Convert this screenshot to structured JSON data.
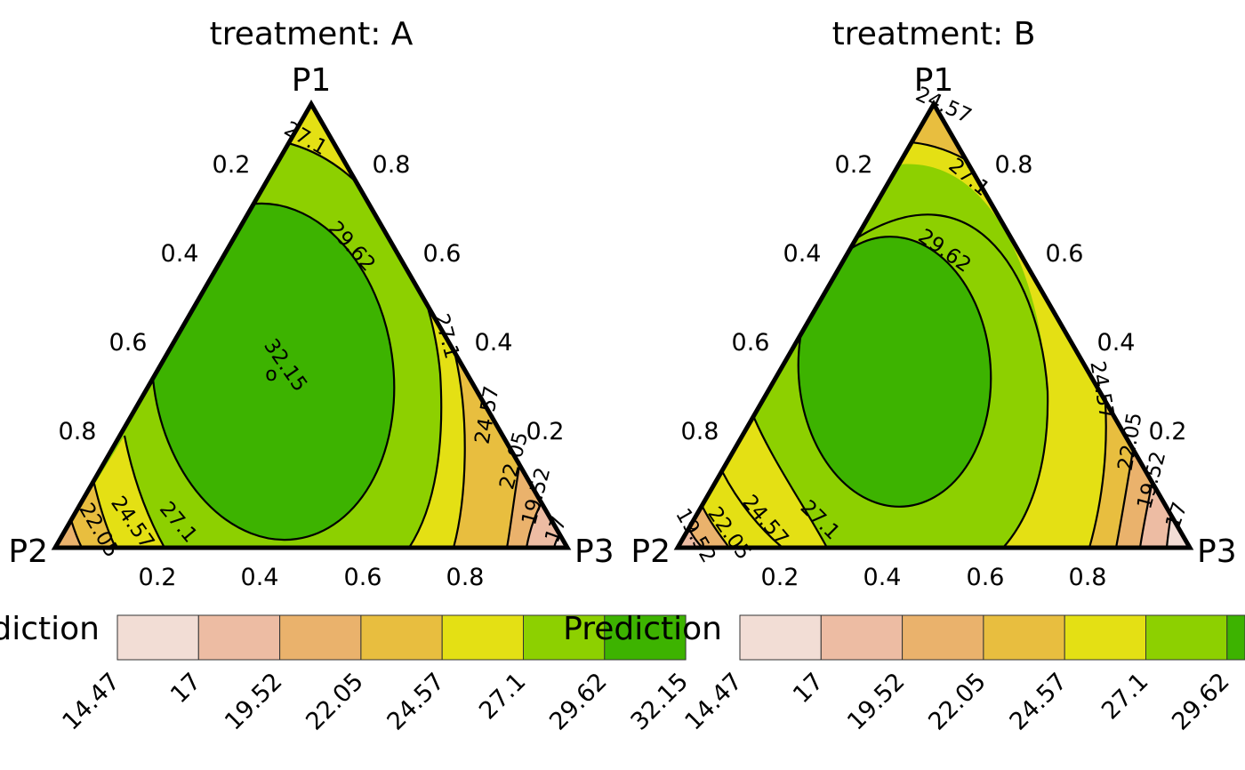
{
  "chart_data": [
    {
      "type": "ternary-contour",
      "title": "treatment: A",
      "vertex_labels": {
        "top": "P1",
        "left": "P2",
        "right": "P3"
      },
      "axis_ticks": [
        0.2,
        0.4,
        0.6,
        0.8
      ],
      "axis_tick_labels": [
        "0.2",
        "0.4",
        "0.6",
        "0.8"
      ],
      "contour_levels": [
        14.47,
        17,
        19.52,
        22.05,
        24.57,
        27.1,
        29.62,
        32.15
      ],
      "contour_labels": [
        "27.1",
        "29.62",
        "32.15",
        "27.1",
        "24.57",
        "22.05",
        "19.52",
        "17",
        "22.05",
        "24.57",
        "27.1"
      ],
      "center_marker": "o",
      "legend": {
        "title": "Prediction",
        "breaks": [
          "14.47",
          "17",
          "19.52",
          "22.05",
          "24.57",
          "27.1",
          "29.62",
          "32.15"
        ]
      }
    },
    {
      "type": "ternary-contour",
      "title": "treatment: B",
      "vertex_labels": {
        "top": "P1",
        "left": "P2",
        "right": "P3"
      },
      "axis_ticks": [
        0.2,
        0.4,
        0.6,
        0.8
      ],
      "axis_tick_labels": [
        "0.2",
        "0.4",
        "0.6",
        "0.8"
      ],
      "contour_levels": [
        14.47,
        17,
        19.52,
        22.05,
        24.57,
        27.1,
        29.62
      ],
      "contour_labels": [
        "24.57",
        "27.1",
        "29.62",
        "24.57",
        "22.05",
        "19.52",
        "17",
        "19.52",
        "22.05",
        "24.57",
        "27.1"
      ],
      "legend": {
        "title": "Prediction",
        "breaks": [
          "14.47",
          "17",
          "19.52",
          "22.05",
          "24.57",
          "27.1",
          "29.62"
        ]
      }
    }
  ],
  "colors": [
    "#f2ddd5",
    "#edbca3",
    "#eab26c",
    "#e8be3f",
    "#e4e014",
    "#8dd000",
    "#3db300"
  ]
}
